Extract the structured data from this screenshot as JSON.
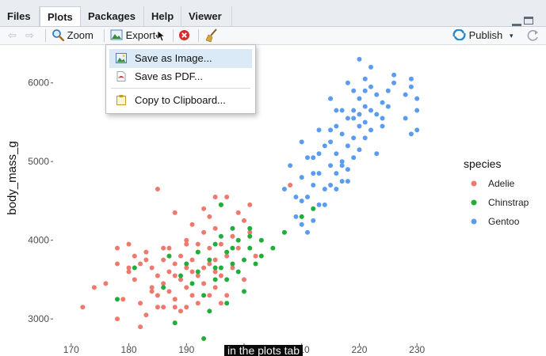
{
  "tabs": [
    {
      "label": "Files",
      "active": false
    },
    {
      "label": "Plots",
      "active": true
    },
    {
      "label": "Packages",
      "active": false
    },
    {
      "label": "Help",
      "active": false
    },
    {
      "label": "Viewer",
      "active": false
    }
  ],
  "toolbar": {
    "zoom_label": "Zoom",
    "export_label": "Export",
    "publish_label": "Publish"
  },
  "export_menu": {
    "items": [
      {
        "label": "Save as Image...",
        "icon": "image-icon",
        "highlighted": true
      },
      {
        "label": "Save as PDF...",
        "icon": "pdf-icon",
        "highlighted": false
      },
      {
        "label": "Copy to Clipboard...",
        "icon": "clipboard-icon",
        "highlighted": false
      }
    ]
  },
  "caption": "in the plots tab",
  "chart_data": {
    "type": "scatter",
    "xlabel": "",
    "ylabel": "body_mass_g",
    "xlim": [
      167,
      233
    ],
    "ylim": [
      2700,
      6480
    ],
    "x_ticks": [
      170,
      180,
      190,
      200,
      210,
      220,
      230
    ],
    "y_ticks": [
      3000,
      4000,
      5000,
      6000
    ],
    "legend_title": "species",
    "legend_position": "right",
    "grid": false,
    "series": [
      {
        "name": "Adelie",
        "color": "#f0796d",
        "points": [
          [
            172,
            3150
          ],
          [
            174,
            3400
          ],
          [
            176,
            3450
          ],
          [
            178,
            3900
          ],
          [
            178,
            3000
          ],
          [
            179,
            3250
          ],
          [
            180,
            3950
          ],
          [
            180,
            3600
          ],
          [
            181,
            3800
          ],
          [
            181,
            3500
          ],
          [
            182,
            3200
          ],
          [
            182,
            3700
          ],
          [
            183,
            3050
          ],
          [
            183,
            3850
          ],
          [
            184,
            3400
          ],
          [
            184,
            3650
          ],
          [
            185,
            3550
          ],
          [
            185,
            3300
          ],
          [
            185,
            4650
          ],
          [
            186,
            3750
          ],
          [
            186,
            3150
          ],
          [
            186,
            3450
          ],
          [
            187,
            3900
          ],
          [
            187,
            3350
          ],
          [
            187,
            3600
          ],
          [
            188,
            3700
          ],
          [
            188,
            3250
          ],
          [
            188,
            4350
          ],
          [
            189,
            3500
          ],
          [
            189,
            3800
          ],
          [
            189,
            3100
          ],
          [
            190,
            3950
          ],
          [
            190,
            3400
          ],
          [
            190,
            4000
          ],
          [
            190,
            3650
          ],
          [
            191,
            3300
          ],
          [
            191,
            3750
          ],
          [
            191,
            4200
          ],
          [
            192,
            3550
          ],
          [
            192,
            3850
          ],
          [
            192,
            3200
          ],
          [
            193,
            4100
          ],
          [
            193,
            3650
          ],
          [
            193,
            3450
          ],
          [
            194,
            3900
          ],
          [
            194,
            3300
          ],
          [
            194,
            4300
          ],
          [
            195,
            3600
          ],
          [
            195,
            3400
          ],
          [
            195,
            4150
          ],
          [
            195,
            3750
          ],
          [
            196,
            3950
          ],
          [
            196,
            4450
          ],
          [
            196,
            3550
          ],
          [
            197,
            3800
          ],
          [
            197,
            3300
          ],
          [
            198,
            4050
          ],
          [
            198,
            3650
          ],
          [
            199,
            3900
          ],
          [
            200,
            3500
          ],
          [
            200,
            4250
          ],
          [
            201,
            4100
          ],
          [
            202,
            3800
          ],
          [
            203,
            4000
          ],
          [
            208,
            4700
          ],
          [
            184,
            3350
          ],
          [
            186,
            3900
          ],
          [
            188,
            3550
          ],
          [
            190,
            3150
          ],
          [
            192,
            3950
          ],
          [
            194,
            3700
          ],
          [
            196,
            3200
          ],
          [
            182,
            2900
          ],
          [
            197,
            4550
          ],
          [
            199,
            4350
          ],
          [
            201,
            4450
          ],
          [
            178,
            3700
          ],
          [
            185,
            3150
          ],
          [
            193,
            4400
          ],
          [
            180,
            3650
          ],
          [
            195,
            4550
          ],
          [
            183,
            3750
          ],
          [
            188,
            3150
          ],
          [
            191,
            3600
          ]
        ]
      },
      {
        "name": "Chinstrap",
        "color": "#1fae3a",
        "points": [
          [
            178,
            3250
          ],
          [
            181,
            3650
          ],
          [
            186,
            3400
          ],
          [
            187,
            3800
          ],
          [
            188,
            2950
          ],
          [
            189,
            3550
          ],
          [
            190,
            3700
          ],
          [
            191,
            3450
          ],
          [
            192,
            3600
          ],
          [
            192,
            3850
          ],
          [
            193,
            3300
          ],
          [
            194,
            3750
          ],
          [
            195,
            3500
          ],
          [
            195,
            3950
          ],
          [
            196,
            3650
          ],
          [
            196,
            4050
          ],
          [
            197,
            3850
          ],
          [
            197,
            3500
          ],
          [
            198,
            3700
          ],
          [
            198,
            3900
          ],
          [
            199,
            3600
          ],
          [
            199,
            4000
          ],
          [
            200,
            3750
          ],
          [
            200,
            3350
          ],
          [
            201,
            3900
          ],
          [
            201,
            4150
          ],
          [
            202,
            3700
          ],
          [
            203,
            4000
          ],
          [
            203,
            3800
          ],
          [
            205,
            3900
          ],
          [
            207,
            4100
          ],
          [
            210,
            4300
          ],
          [
            212,
            4400
          ],
          [
            196,
            4450
          ],
          [
            198,
            4150
          ],
          [
            193,
            2750
          ],
          [
            194,
            3100
          ],
          [
            197,
            3200
          ],
          [
            195,
            3650
          ],
          [
            201,
            4050
          ]
        ]
      },
      {
        "name": "Gentoo",
        "color": "#5b9cf0",
        "points": [
          [
            207,
            4650
          ],
          [
            208,
            4950
          ],
          [
            209,
            4300
          ],
          [
            210,
            4500
          ],
          [
            210,
            4800
          ],
          [
            211,
            4550
          ],
          [
            211,
            4100
          ],
          [
            212,
            4700
          ],
          [
            212,
            5050
          ],
          [
            213,
            4450
          ],
          [
            213,
            4850
          ],
          [
            214,
            4650
          ],
          [
            214,
            5200
          ],
          [
            215,
            4700
          ],
          [
            215,
            4950
          ],
          [
            215,
            5400
          ],
          [
            216,
            4850
          ],
          [
            216,
            5100
          ],
          [
            216,
            5450
          ],
          [
            217,
            5000
          ],
          [
            217,
            5350
          ],
          [
            217,
            4750
          ],
          [
            218,
            5200
          ],
          [
            218,
            5550
          ],
          [
            218,
            4900
          ],
          [
            219,
            5300
          ],
          [
            219,
            5650
          ],
          [
            219,
            5050
          ],
          [
            220,
            5450
          ],
          [
            220,
            5800
          ],
          [
            220,
            5150
          ],
          [
            221,
            5500
          ],
          [
            221,
            5700
          ],
          [
            221,
            5900
          ],
          [
            222,
            5400
          ],
          [
            222,
            5650
          ],
          [
            222,
            6200
          ],
          [
            223,
            5600
          ],
          [
            223,
            5850
          ],
          [
            224,
            5750
          ],
          [
            224,
            5550
          ],
          [
            225,
            5700
          ],
          [
            225,
            5900
          ],
          [
            226,
            6000
          ],
          [
            228,
            5550
          ],
          [
            228,
            5850
          ],
          [
            229,
            6050
          ],
          [
            229,
            5950
          ],
          [
            230,
            5650
          ],
          [
            230,
            5400
          ],
          [
            210,
            5250
          ],
          [
            213,
            5400
          ],
          [
            216,
            5650
          ],
          [
            219,
            5900
          ],
          [
            220,
            6300
          ],
          [
            215,
            5800
          ],
          [
            218,
            6000
          ],
          [
            212,
            4250
          ],
          [
            214,
            4450
          ],
          [
            221,
            5300
          ],
          [
            223,
            5100
          ],
          [
            217,
            5650
          ],
          [
            211,
            5050
          ],
          [
            209,
            4550
          ],
          [
            210,
            4200
          ],
          [
            212,
            4850
          ],
          [
            222,
            5950
          ],
          [
            224,
            5450
          ],
          [
            226,
            6100
          ],
          [
            213,
            5100
          ],
          [
            219,
            5550
          ],
          [
            218,
            4750
          ],
          [
            220,
            5600
          ],
          [
            215,
            5250
          ],
          [
            216,
            4650
          ],
          [
            217,
            4950
          ],
          [
            221,
            6050
          ],
          [
            230,
            5800
          ],
          [
            229,
            5350
          ]
        ]
      }
    ]
  }
}
